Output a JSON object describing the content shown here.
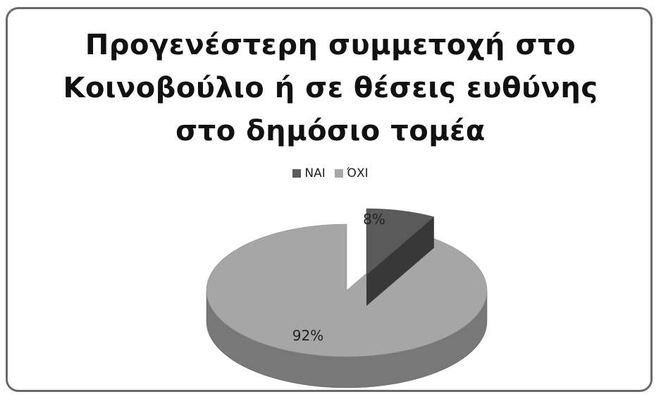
{
  "chart_data": {
    "type": "pie",
    "title_lines": [
      "Προγενέστερη συμμετοχή στο",
      "Κοινοβούλιο ή σε θέσεις ευθύνης",
      "στο δημόσιο τομέα"
    ],
    "legend_placement": "top",
    "categories": [
      "ΝΑΙ",
      "ΌΧΙ"
    ],
    "values": [
      8,
      92
    ],
    "data_labels": [
      "8%",
      "92%"
    ],
    "colors": [
      "#5a5a5a",
      "#a6a6a6"
    ],
    "style": "3d-exploded"
  }
}
